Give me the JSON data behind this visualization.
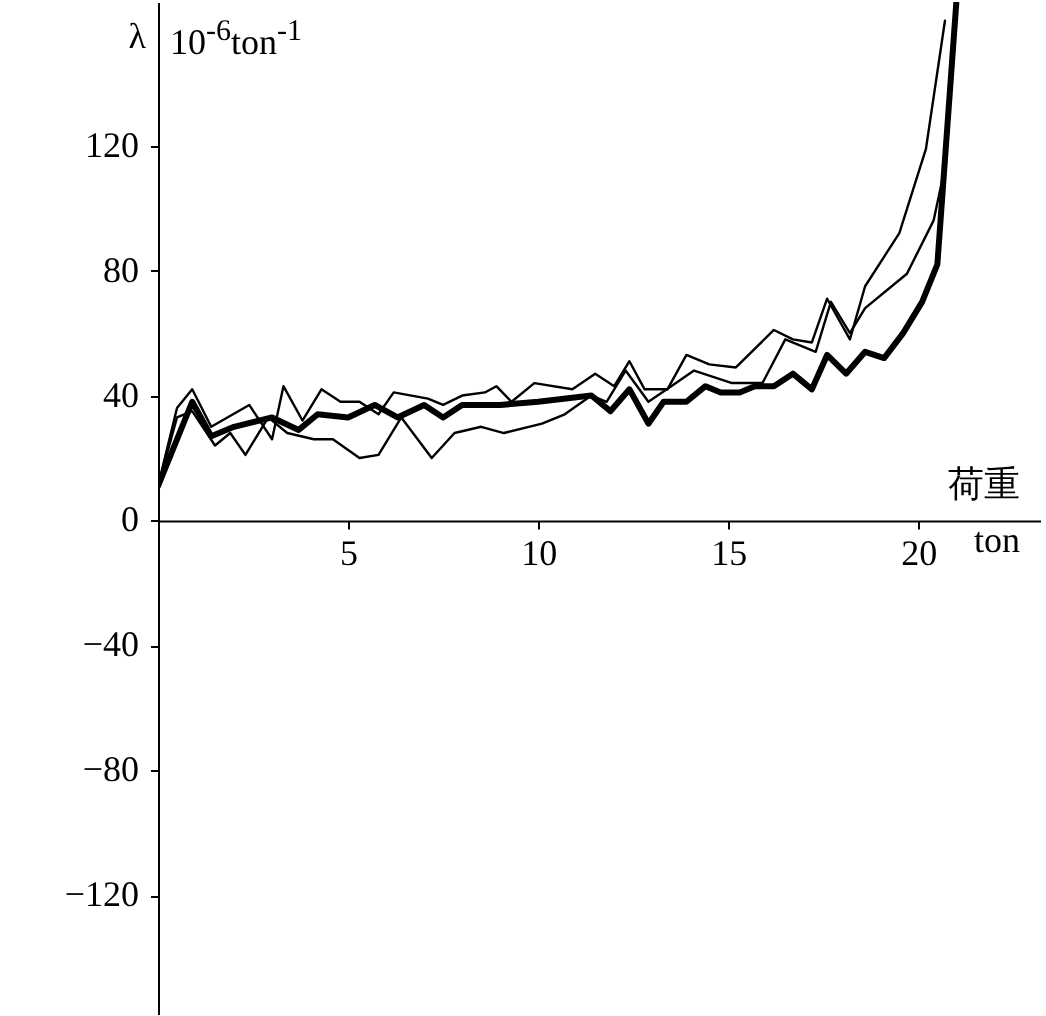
{
  "chart_data": {
    "type": "line",
    "xlabel": "荷重 ton",
    "ylabel": "λ 10$^{-6}$ton$^{-1}$",
    "xlim": [
      0,
      23.2
    ],
    "ylim": [
      -158,
      166
    ],
    "xticks": [
      5,
      10,
      15,
      20
    ],
    "yticks": [
      -120,
      -80,
      -40,
      0,
      40,
      80,
      120
    ],
    "grid": false,
    "marker": "none",
    "line_style": "solid",
    "series": [
      {
        "color": "#000000",
        "x": [
          0,
          0.9,
          1.4,
          2,
          3,
          3.7,
          4.2,
          5,
          5.7,
          6.3,
          7,
          7.5,
          8,
          9,
          10,
          11.4,
          11.9,
          12.4,
          12.9,
          13.3,
          13.9,
          14.4,
          14.8,
          15.3,
          15.7,
          16.2,
          16.7,
          17.2,
          17.6,
          18.1,
          18.6,
          19.1,
          19.6,
          20.1,
          20.5,
          21.0
        ],
        "values": [
          11,
          38,
          27,
          30,
          33,
          29,
          34,
          33,
          37,
          33,
          37,
          33,
          37,
          37,
          38,
          40,
          35,
          42,
          31,
          38,
          38,
          43,
          41,
          41,
          43,
          43,
          47,
          42,
          53,
          47,
          54,
          52,
          60,
          70,
          82,
          166
        ]
      },
      {
        "color": "#000000",
        "x": [
          0,
          0.5,
          0.9,
          1.4,
          2.4,
          3.0,
          3.3,
          3.8,
          4.3,
          4.8,
          5.3,
          5.8,
          6.2,
          7.1,
          7.5,
          8.0,
          8.6,
          8.9,
          9.3,
          9.9,
          10.9,
          11.5,
          12.0,
          12.4,
          12.8,
          13.4,
          13.9,
          14.5,
          15.2,
          16.2,
          16.7,
          17.2,
          17.6,
          18.2,
          18.6,
          19.5,
          20.2,
          20.7
        ],
        "values": [
          11,
          36,
          42,
          30,
          37,
          26,
          43,
          32,
          42,
          38,
          38,
          34,
          41,
          39,
          37,
          40,
          41,
          43,
          38,
          44,
          42,
          47,
          43,
          51,
          42,
          42,
          53,
          50,
          49,
          61,
          58,
          57,
          71,
          58,
          75,
          92,
          119,
          160
        ]
      },
      {
        "color": "#000000",
        "x": [
          0,
          0.5,
          0.9,
          1.5,
          1.9,
          2.3,
          2.9,
          3.4,
          4.1,
          4.6,
          5.3,
          5.8,
          6.4,
          7.2,
          7.8,
          8.5,
          9.1,
          10.1,
          10.7,
          11.4,
          11.8,
          12.3,
          12.9,
          13.5,
          14.1,
          15.1,
          15.9,
          16.5,
          17.3,
          17.7,
          18.2,
          18.6,
          19.7,
          20.4,
          20.7,
          21.0
        ],
        "values": [
          11,
          33,
          35,
          24,
          28,
          21,
          33,
          28,
          26,
          26,
          20,
          21,
          33,
          20,
          28,
          30,
          28,
          31,
          34,
          40,
          38,
          48,
          38,
          43,
          48,
          44,
          44,
          58,
          54,
          70,
          60,
          68,
          79,
          96,
          113,
          164
        ]
      }
    ]
  }
}
